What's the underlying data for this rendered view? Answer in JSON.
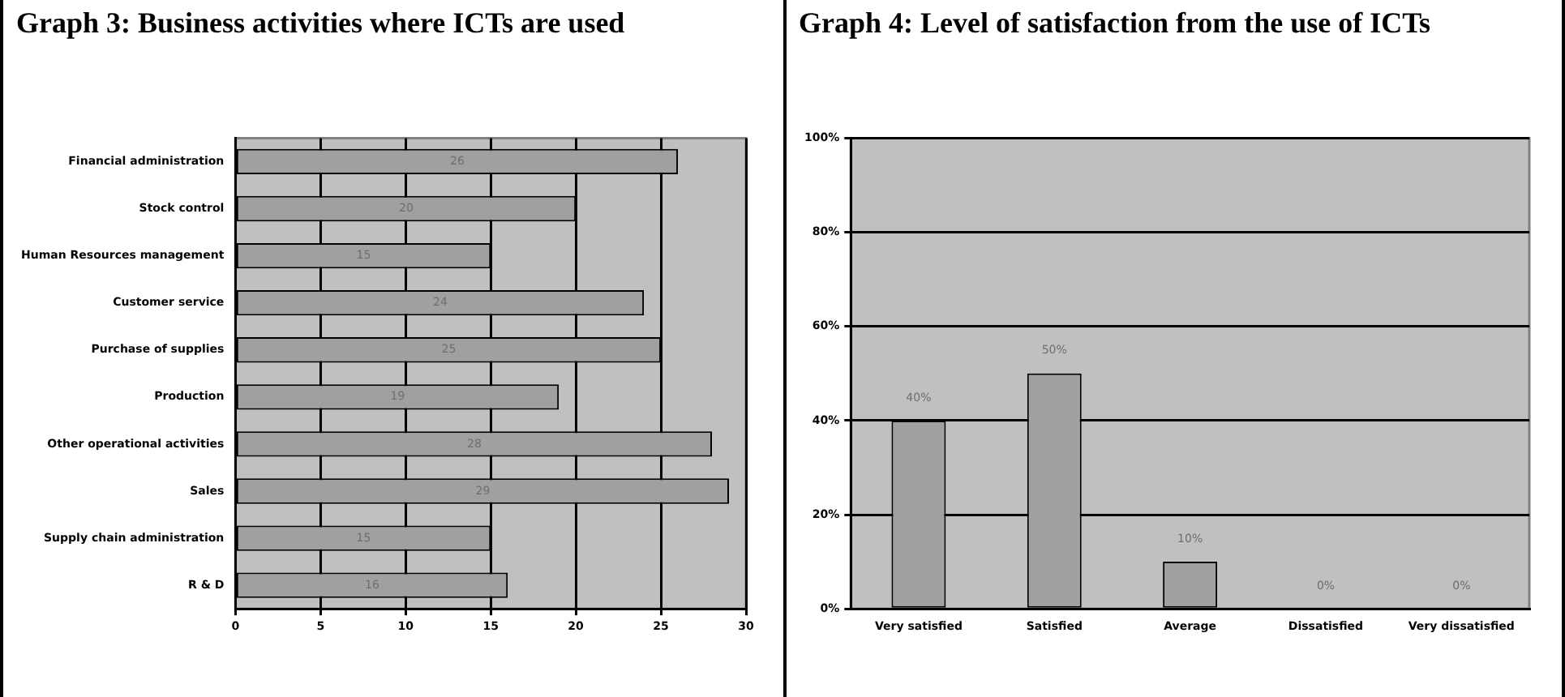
{
  "chart_data": [
    {
      "type": "bar",
      "title": "Graph 3: Business activities where ICTs are used",
      "orientation": "horizontal",
      "categories": [
        "Financial administration",
        "Stock control",
        "Human Resources management",
        "Customer service",
        "Purchase of supplies",
        "Production",
        "Other operational activities",
        "Sales",
        "Supply chain administration",
        "R & D"
      ],
      "values": [
        26,
        20,
        15,
        24,
        25,
        19,
        28,
        29,
        15,
        16
      ],
      "color": "#a0a0a0",
      "xlim": [
        0,
        30
      ],
      "xticks": [
        0,
        5,
        10,
        15,
        20,
        25,
        30
      ],
      "grid": "x",
      "data_labels": true
    },
    {
      "type": "bar",
      "title": "Graph 4: Level of satisfaction from the use of ICTs",
      "categories": [
        "Very satisfied",
        "Satisfied",
        "Average",
        "Dissatisfied",
        "Very dissatisfied"
      ],
      "values": [
        40,
        50,
        10,
        0,
        0
      ],
      "value_labels": [
        "40%",
        "50%",
        "10%",
        "0%",
        "0%"
      ],
      "color": "#a0a0a0",
      "ylim": [
        0,
        100
      ],
      "yticks": [
        {
          "value": 0,
          "label": "0%"
        },
        {
          "value": 20,
          "label": "20%"
        },
        {
          "value": 40,
          "label": "40%"
        },
        {
          "value": 60,
          "label": "60%"
        },
        {
          "value": 80,
          "label": "80%"
        },
        {
          "value": 100,
          "label": "100%"
        }
      ],
      "grid": "y"
    }
  ]
}
